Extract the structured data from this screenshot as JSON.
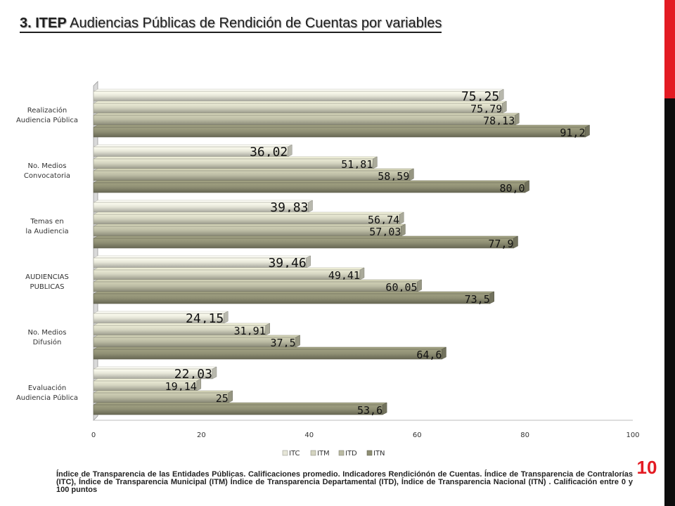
{
  "slide": {
    "title_bold": "3. ITEP",
    "title_rest": " Audiencias Públicas de Rendición de Cuentas por variables",
    "page_number": "10",
    "footnote": "Índice de Transparencia de las Entidades Públicas. Calificaciones promedio. Indicadores Rendiciónón de Cuentas. Índice de Transparencia de Contralorías (ITC), Índice de Transparencia Municipal (ITM) Índice de Transparencia Departamental (ITD), Índice de Transparencia Nacional (ITN) . Calificación entre 0 y 100 puntos",
    "accent_color": "#e31b23"
  },
  "chart_data": {
    "type": "bar",
    "orientation": "horizontal",
    "categories": [
      [
        "Realización",
        "Audiencia Pública"
      ],
      [
        "No. Medios",
        "Convocatoria"
      ],
      [
        "Temas en",
        "la Audiencia"
      ],
      [
        "AUDIENCIAS",
        "PUBLICAS"
      ],
      [
        "No.  Medios",
        "Difusión"
      ],
      [
        "Evaluación",
        "Audiencia Pública"
      ]
    ],
    "series": [
      {
        "name": "ITC",
        "values": [
          75.25,
          36.02,
          39.83,
          39.46,
          24.15,
          22.03
        ],
        "labels": [
          "75,25",
          "36,02",
          "39,83",
          "39,46",
          "24,15",
          "22,03"
        ],
        "color": "#e6e6d8"
      },
      {
        "name": "ITM",
        "values": [
          75.79,
          51.81,
          56.74,
          49.41,
          31.91,
          19.14
        ],
        "labels": [
          "75,79",
          "51,81",
          "56,74",
          "49,41",
          "31,91",
          "19,14"
        ],
        "color": "#d4d4c0"
      },
      {
        "name": "ITD",
        "values": [
          78.13,
          58.59,
          57.03,
          60.05,
          37.5,
          25
        ],
        "labels": [
          "78,13",
          "58,59",
          "57,03",
          "60,05",
          "37,5",
          "25"
        ],
        "color": "#bbbba3"
      },
      {
        "name": "ITN",
        "values": [
          91.2,
          80.0,
          77.9,
          73.5,
          64.6,
          53.6
        ],
        "labels": [
          "91,2",
          "80,0",
          "77,9",
          "73,5",
          "64,6",
          "53,6"
        ],
        "color": "#8f8f74"
      }
    ],
    "x_ticks": [
      "0",
      "20",
      "40",
      "60",
      "80",
      "100"
    ],
    "xlim": [
      0,
      100
    ],
    "grid": false,
    "legend_position": "bottom"
  }
}
